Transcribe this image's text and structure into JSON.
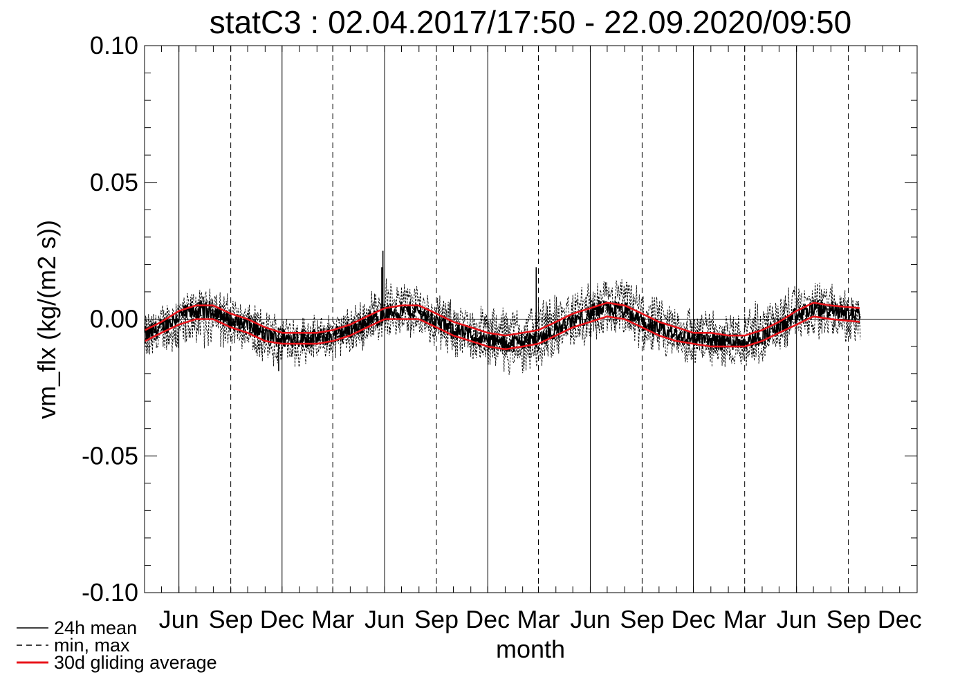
{
  "chart_data": {
    "type": "line",
    "title": "statC3 : 02.04.2017/17:50 - 22.09.2020/09:50",
    "xlabel": "month",
    "ylabel": "vm_flx (kg/(m2 s))",
    "xlim": [
      "2017-04-01",
      "2021-01-01"
    ],
    "ylim": [
      -0.1,
      0.1
    ],
    "yticks": [
      "0.10",
      "0.05",
      "0.00",
      "-0.05",
      "-0.10"
    ],
    "xtick_labels": [
      "Jun",
      "Sep",
      "Dec",
      "Mar",
      "Jun",
      "Sep",
      "Dec",
      "Mar",
      "Jun",
      "Sep",
      "Dec",
      "Mar",
      "Jun",
      "Sep",
      "Dec"
    ],
    "xtick_dates": [
      "2017-06-01",
      "2017-09-01",
      "2017-12-01",
      "2018-03-01",
      "2018-06-01",
      "2018-09-01",
      "2018-12-01",
      "2019-03-01",
      "2019-06-01",
      "2019-09-01",
      "2019-12-01",
      "2020-03-01",
      "2020-06-01",
      "2020-09-01",
      "2020-12-01"
    ],
    "grid": {
      "solid_vertical_at": [
        "2017-06-01",
        "2017-12-01",
        "2018-06-01",
        "2018-12-01",
        "2019-06-01",
        "2019-12-01",
        "2020-06-01"
      ],
      "dashed_vertical_at": [
        "2017-09-01",
        "2018-03-01",
        "2018-09-01",
        "2019-03-01",
        "2019-09-01",
        "2020-03-01",
        "2020-09-01"
      ],
      "zero_line": true
    },
    "legend_position": "bottom-left",
    "legend": [
      {
        "label": "24h mean",
        "style": "solid",
        "color": "#000000"
      },
      {
        "label": "min, max",
        "style": "dashed",
        "color": "#000000"
      },
      {
        "label": "30d gliding average",
        "style": "solid-thick",
        "color": "#e8141a"
      }
    ],
    "series": [
      {
        "label": "30d gliding average",
        "style": "upper",
        "color": "#e8141a",
        "x": [
          "2017-04-02",
          "2017-05-01",
          "2017-06-01",
          "2017-07-01",
          "2017-08-01",
          "2017-09-01",
          "2017-10-01",
          "2017-11-01",
          "2017-12-01",
          "2018-01-01",
          "2018-02-01",
          "2018-03-01",
          "2018-04-01",
          "2018-05-01",
          "2018-06-01",
          "2018-07-01",
          "2018-08-01",
          "2018-09-01",
          "2018-10-01",
          "2018-11-01",
          "2018-12-01",
          "2019-01-01",
          "2019-02-01",
          "2019-03-01",
          "2019-04-01",
          "2019-05-01",
          "2019-06-01",
          "2019-07-01",
          "2019-08-01",
          "2019-09-01",
          "2019-10-01",
          "2019-11-01",
          "2019-12-01",
          "2020-01-01",
          "2020-02-01",
          "2020-03-01",
          "2020-04-01",
          "2020-05-01",
          "2020-06-01",
          "2020-07-01",
          "2020-08-01",
          "2020-09-22"
        ],
        "y": [
          -0.004,
          -0.001,
          0.003,
          0.005,
          0.005,
          0.002,
          0.0,
          -0.003,
          -0.005,
          -0.005,
          -0.005,
          -0.004,
          -0.002,
          0.001,
          0.004,
          0.005,
          0.005,
          0.002,
          -0.001,
          -0.003,
          -0.005,
          -0.006,
          -0.005,
          -0.004,
          -0.001,
          0.002,
          0.004,
          0.006,
          0.005,
          0.002,
          -0.001,
          -0.003,
          -0.005,
          -0.005,
          -0.006,
          -0.006,
          -0.004,
          -0.001,
          0.003,
          0.006,
          0.005,
          0.004
        ]
      },
      {
        "label": "30d gliding average",
        "style": "lower",
        "color": "#e8141a",
        "x": [
          "2017-04-02",
          "2017-05-01",
          "2017-06-01",
          "2017-07-01",
          "2017-08-01",
          "2017-09-01",
          "2017-10-01",
          "2017-11-01",
          "2017-12-01",
          "2018-01-01",
          "2018-02-01",
          "2018-03-01",
          "2018-04-01",
          "2018-05-01",
          "2018-06-01",
          "2018-07-01",
          "2018-08-01",
          "2018-09-01",
          "2018-10-01",
          "2018-11-01",
          "2018-12-01",
          "2019-01-01",
          "2019-02-01",
          "2019-03-01",
          "2019-04-01",
          "2019-05-01",
          "2019-06-01",
          "2019-07-01",
          "2019-08-01",
          "2019-09-01",
          "2019-10-01",
          "2019-11-01",
          "2019-12-01",
          "2020-01-01",
          "2020-02-01",
          "2020-03-01",
          "2020-04-01",
          "2020-05-01",
          "2020-06-01",
          "2020-07-01",
          "2020-08-01",
          "2020-09-22"
        ],
        "y": [
          -0.008,
          -0.005,
          -0.002,
          0.0,
          0.0,
          -0.003,
          -0.005,
          -0.008,
          -0.009,
          -0.009,
          -0.009,
          -0.008,
          -0.006,
          -0.003,
          0.0,
          0.0,
          0.0,
          -0.003,
          -0.006,
          -0.008,
          -0.01,
          -0.011,
          -0.01,
          -0.009,
          -0.006,
          -0.003,
          -0.001,
          0.001,
          0.0,
          -0.003,
          -0.006,
          -0.008,
          -0.009,
          -0.01,
          -0.01,
          -0.01,
          -0.008,
          -0.005,
          -0.002,
          0.001,
          0.0,
          -0.001
        ]
      },
      {
        "label": "24h mean",
        "style": "solid",
        "color": "#000000",
        "x": [
          "2017-04-02",
          "2017-05-01",
          "2017-06-01",
          "2017-07-01",
          "2017-08-01",
          "2017-09-01",
          "2017-10-01",
          "2017-11-01",
          "2017-12-01",
          "2018-01-01",
          "2018-02-01",
          "2018-03-01",
          "2018-04-01",
          "2018-05-01",
          "2018-06-01",
          "2018-07-01",
          "2018-08-01",
          "2018-09-01",
          "2018-10-01",
          "2018-11-01",
          "2018-12-01",
          "2019-01-01",
          "2019-02-01",
          "2019-03-01",
          "2019-04-01",
          "2019-05-01",
          "2019-06-01",
          "2019-07-01",
          "2019-08-01",
          "2019-09-01",
          "2019-10-01",
          "2019-11-01",
          "2019-12-01",
          "2020-01-01",
          "2020-02-01",
          "2020-03-01",
          "2020-04-01",
          "2020-05-01",
          "2020-06-01",
          "2020-07-01",
          "2020-08-01",
          "2020-09-22"
        ],
        "y": [
          -0.006,
          -0.003,
          0.001,
          0.003,
          0.003,
          -0.001,
          -0.002,
          -0.006,
          -0.007,
          -0.007,
          -0.007,
          -0.006,
          -0.004,
          -0.001,
          0.002,
          0.003,
          0.003,
          -0.001,
          -0.004,
          -0.006,
          -0.008,
          -0.009,
          -0.008,
          -0.007,
          -0.004,
          -0.001,
          0.002,
          0.004,
          0.003,
          -0.001,
          -0.004,
          -0.006,
          -0.007,
          -0.008,
          -0.008,
          -0.008,
          -0.006,
          -0.003,
          0.001,
          0.004,
          0.003,
          0.002
        ]
      },
      {
        "label": "min, max",
        "style": "dashed-envelope",
        "color": "#000000",
        "x": [
          "2017-04-02",
          "2017-06-01",
          "2017-08-01",
          "2017-10-01",
          "2017-12-01",
          "2018-02-01",
          "2018-04-01",
          "2018-06-01",
          "2018-08-01",
          "2018-10-01",
          "2018-12-01",
          "2019-02-01",
          "2019-04-01",
          "2019-06-01",
          "2019-08-01",
          "2019-10-01",
          "2019-12-01",
          "2020-02-01",
          "2020-04-01",
          "2020-06-01",
          "2020-08-01",
          "2020-09-22"
        ],
        "y_max": [
          0.0,
          0.007,
          0.01,
          0.004,
          0.0,
          -0.001,
          0.002,
          0.014,
          0.011,
          0.005,
          0.003,
          0.004,
          0.008,
          0.012,
          0.014,
          0.006,
          0.003,
          0.002,
          0.006,
          0.012,
          0.012,
          0.006
        ],
        "y_min": [
          -0.013,
          -0.01,
          -0.008,
          -0.012,
          -0.018,
          -0.014,
          -0.012,
          -0.005,
          -0.006,
          -0.012,
          -0.016,
          -0.02,
          -0.012,
          -0.007,
          -0.006,
          -0.012,
          -0.016,
          -0.016,
          -0.014,
          -0.006,
          -0.006,
          -0.009
        ]
      }
    ],
    "spikes": [
      {
        "x": "2018-05-27",
        "y_max": 0.019,
        "y_min": -0.002
      },
      {
        "x": "2018-05-29",
        "y_max": 0.025,
        "y_min": 0.0
      },
      {
        "x": "2019-02-25",
        "y_max": 0.019,
        "y_min": -0.006
      },
      {
        "x": "2017-11-25",
        "y_max": -0.004,
        "y_min": -0.019
      }
    ]
  }
}
